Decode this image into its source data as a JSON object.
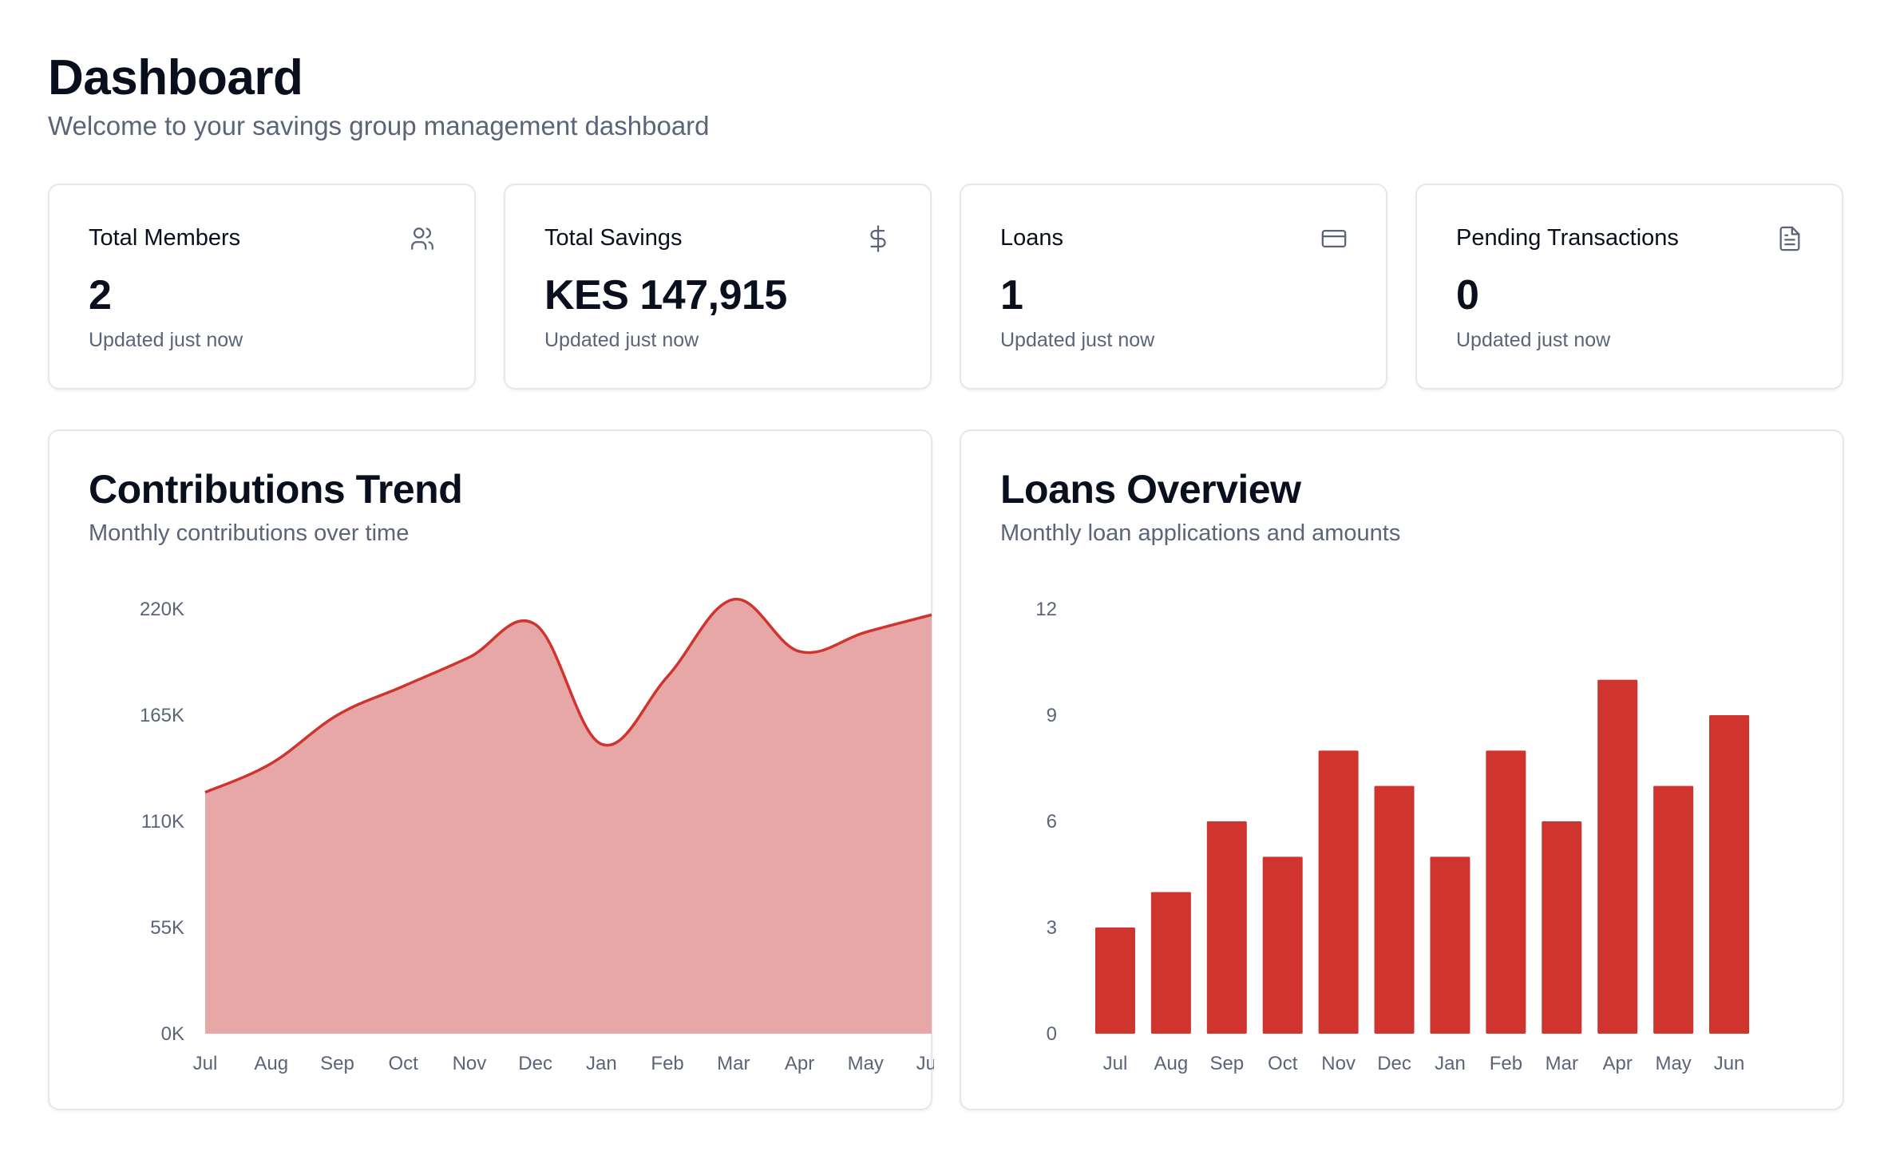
{
  "header": {
    "title": "Dashboard",
    "subtitle": "Welcome to your savings group management dashboard"
  },
  "stats": [
    {
      "label": "Total Members",
      "value": "2",
      "note": "Updated just now",
      "icon": "users-icon"
    },
    {
      "label": "Total Savings",
      "value": "KES 147,915",
      "note": "Updated just now",
      "icon": "dollar-icon"
    },
    {
      "label": "Loans",
      "value": "1",
      "note": "Updated just now",
      "icon": "credit-card-icon"
    },
    {
      "label": "Pending Transactions",
      "value": "0",
      "note": "Updated just now",
      "icon": "file-text-icon"
    }
  ],
  "colors": {
    "accent": "#cf342e",
    "area_fill": "#e6a7a6",
    "muted_text": "#5b6478",
    "border": "#e4e7ec"
  },
  "chart_data": [
    {
      "type": "area",
      "title": "Contributions Trend",
      "subtitle": "Monthly contributions over time",
      "categories": [
        "Jul",
        "Aug",
        "Sep",
        "Oct",
        "Nov",
        "Dec",
        "Jan",
        "Feb",
        "Mar",
        "Apr",
        "May",
        "Jun"
      ],
      "y_ticks": [
        "0K",
        "55K",
        "110K",
        "165K",
        "220K"
      ],
      "ylim": [
        0,
        220000
      ],
      "series": [
        {
          "values": [
            125000,
            140000,
            165000,
            180000,
            195000,
            212000,
            150000,
            185000,
            225000,
            198000,
            208000,
            217000
          ]
        }
      ],
      "grid": false
    },
    {
      "type": "bar",
      "title": "Loans Overview",
      "subtitle": "Monthly loan applications and amounts",
      "categories": [
        "Jul",
        "Aug",
        "Sep",
        "Oct",
        "Nov",
        "Dec",
        "Jan",
        "Feb",
        "Mar",
        "Apr",
        "May",
        "Jun"
      ],
      "y_ticks": [
        "0",
        "3",
        "6",
        "9",
        "12"
      ],
      "ylim": [
        0,
        12
      ],
      "series": [
        {
          "values": [
            3,
            4,
            6,
            5,
            8,
            7,
            5,
            8,
            6,
            10,
            7,
            9
          ]
        }
      ],
      "grid": false
    }
  ]
}
